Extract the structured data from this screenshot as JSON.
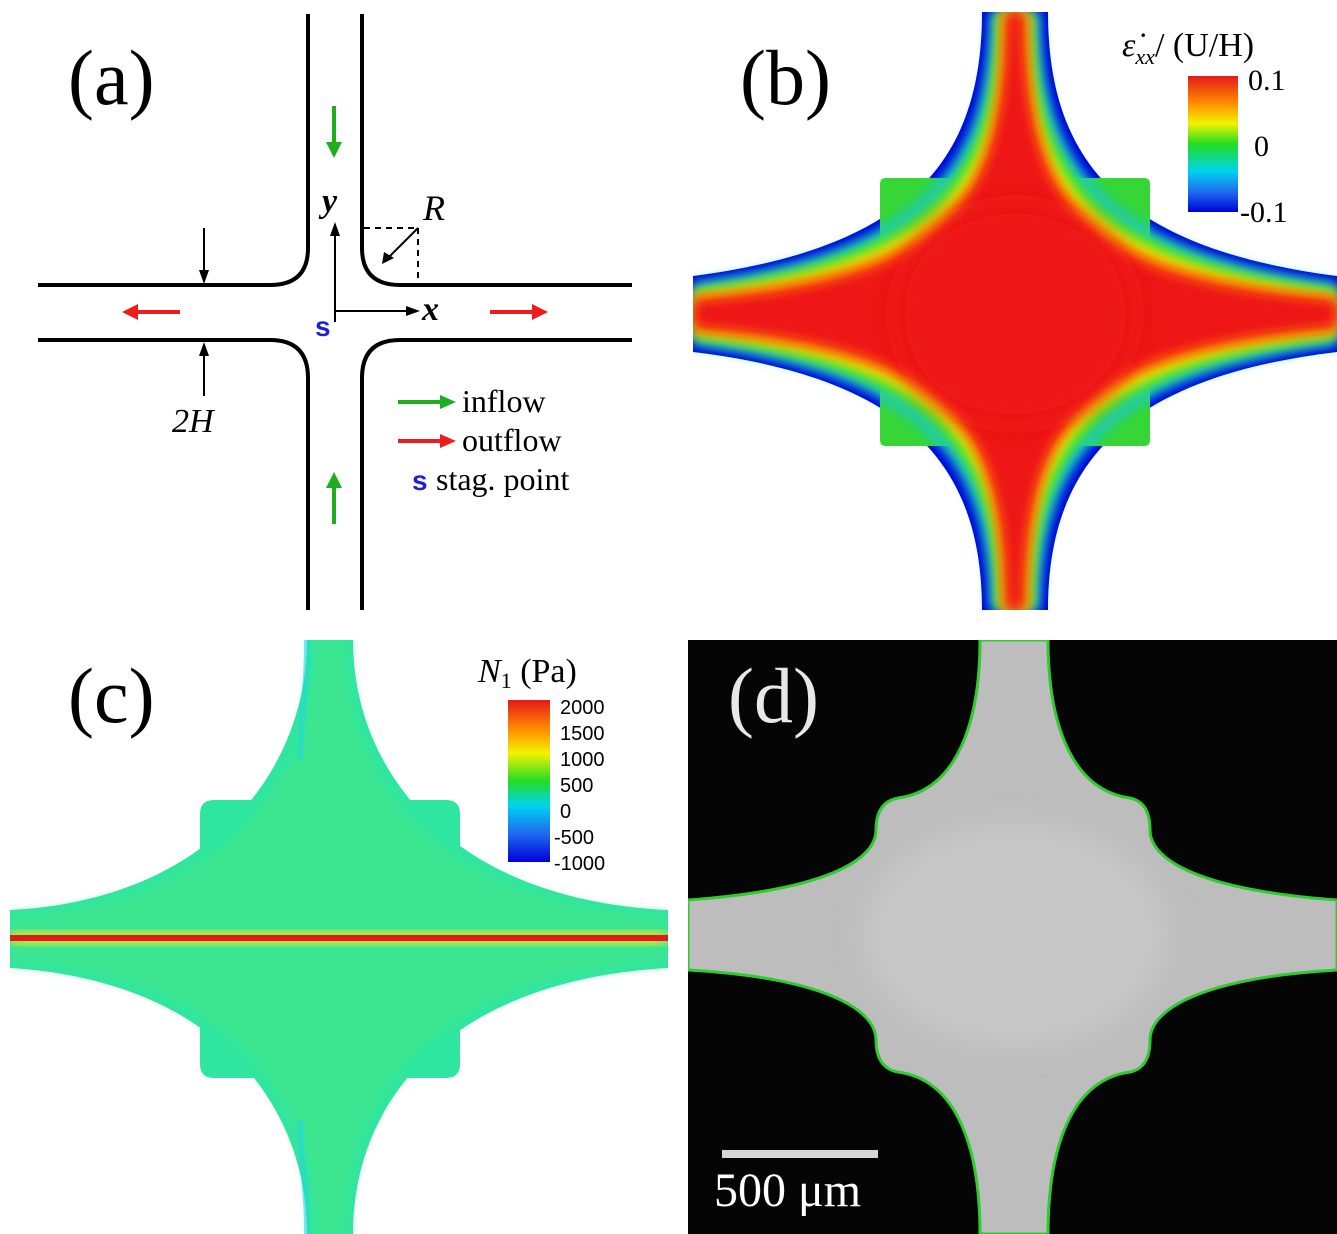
{
  "panels": {
    "a": {
      "label": "(a)",
      "axis_y": "y",
      "axis_x": "x",
      "radius_label": "R",
      "width_label": "2H",
      "stagnation_marker": "s",
      "legend": {
        "inflow": "inflow",
        "outflow": "outflow",
        "stag_marker": "s",
        "stag_text": "stag. point"
      },
      "colors": {
        "inflow": "#1fae1f",
        "outflow": "#ee1c1c",
        "stag": "#1f1fd6",
        "wall": "#000000"
      }
    },
    "b": {
      "label": "(b)",
      "colorbar": {
        "title_num": "ε̇",
        "title_sub": "xx",
        "title_rest": "/ (U/H)",
        "ticks": [
          "0.1",
          "0",
          "-0.1"
        ]
      }
    },
    "c": {
      "label": "(c)",
      "colorbar": {
        "title_sym": "N",
        "title_sub": "1",
        "title_unit": " (Pa)",
        "ticks": [
          "2000",
          "1500",
          "1000",
          "500",
          "0",
          "-500",
          "-1000"
        ]
      }
    },
    "d": {
      "label": "(d)",
      "scale_bar": "500 μm",
      "edge_color": "#2ecc2e"
    }
  }
}
